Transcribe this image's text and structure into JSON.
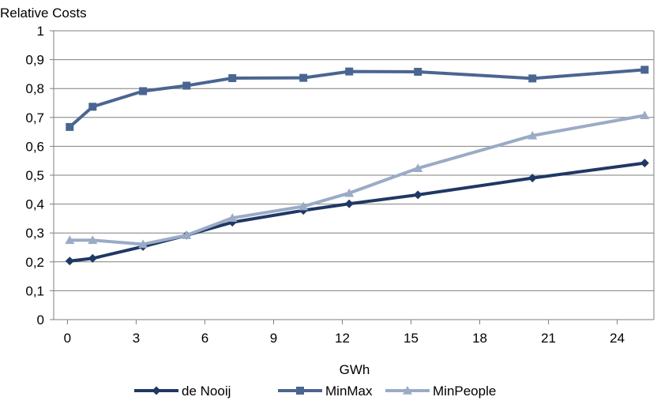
{
  "chart_data": {
    "type": "line",
    "title": "",
    "ylabel": "Relative Costs",
    "xlabel": "GWh",
    "xlim": [
      -0.6,
      25.6
    ],
    "ylim": [
      0,
      1
    ],
    "x_ticks": [
      0,
      3,
      6,
      9,
      12,
      15,
      18,
      21,
      24
    ],
    "y_ticks": [
      0,
      0.1,
      0.2,
      0.3,
      0.4,
      0.5,
      0.6,
      0.7,
      0.8,
      0.9,
      1
    ],
    "y_tick_labels": [
      "0",
      "0,1",
      "0,2",
      "0,3",
      "0,4",
      "0,5",
      "0,6",
      "0,7",
      "0,8",
      "0,9",
      "1"
    ],
    "x_tick_labels": [
      "0",
      "3",
      "6",
      "9",
      "12",
      "15",
      "18",
      "21",
      "24"
    ],
    "grid": "horizontal",
    "legend_position": "bottom",
    "series": [
      {
        "name": "de Nooij",
        "color": "#1f3864",
        "marker": "diamond",
        "x": [
          0.1,
          1.1,
          3.3,
          5.2,
          7.2,
          10.3,
          12.3,
          15.3,
          20.3,
          25.2
        ],
        "y": [
          0.203,
          0.212,
          0.253,
          0.292,
          0.337,
          0.378,
          0.401,
          0.432,
          0.49,
          0.542
        ]
      },
      {
        "name": "MinMax",
        "color": "#4a6591",
        "marker": "square",
        "x": [
          0.1,
          1.1,
          3.3,
          5.2,
          7.2,
          10.3,
          12.3,
          15.3,
          20.3,
          25.2
        ],
        "y": [
          0.667,
          0.737,
          0.791,
          0.81,
          0.836,
          0.837,
          0.859,
          0.858,
          0.835,
          0.865
        ]
      },
      {
        "name": "MinPeople",
        "color": "#9aabc6",
        "marker": "triangle",
        "x": [
          0.1,
          1.1,
          3.3,
          5.2,
          7.2,
          10.3,
          12.3,
          15.3,
          20.3,
          25.2
        ],
        "y": [
          0.275,
          0.275,
          0.261,
          0.292,
          0.352,
          0.392,
          0.438,
          0.524,
          0.637,
          0.707
        ]
      }
    ]
  }
}
